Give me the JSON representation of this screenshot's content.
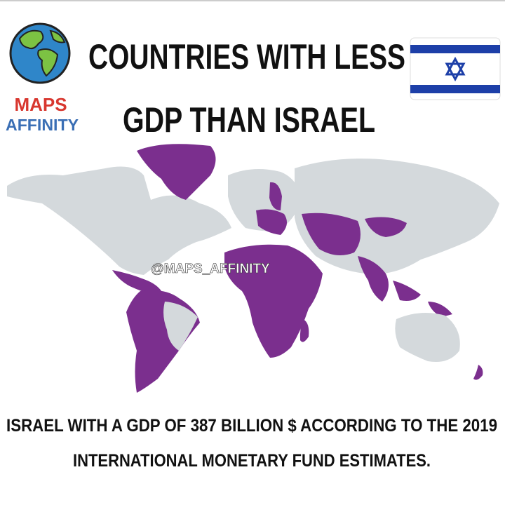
{
  "header": {
    "title_lines": [
      "COUNTRIES WITH LESS",
      "GDP THAN ISRAEL"
    ],
    "logo": {
      "line1": "MAPS",
      "line2": "AFFINITY"
    }
  },
  "map": {
    "watermark": "@MAPS_AFFINITY"
  },
  "footer": {
    "lines": [
      "ISRAEL WITH A GDP OF 387 BILLION $  ACCORDING TO THE  2019",
      "INTERNATIONAL MONETARY FUND ESTIMATES."
    ]
  }
}
